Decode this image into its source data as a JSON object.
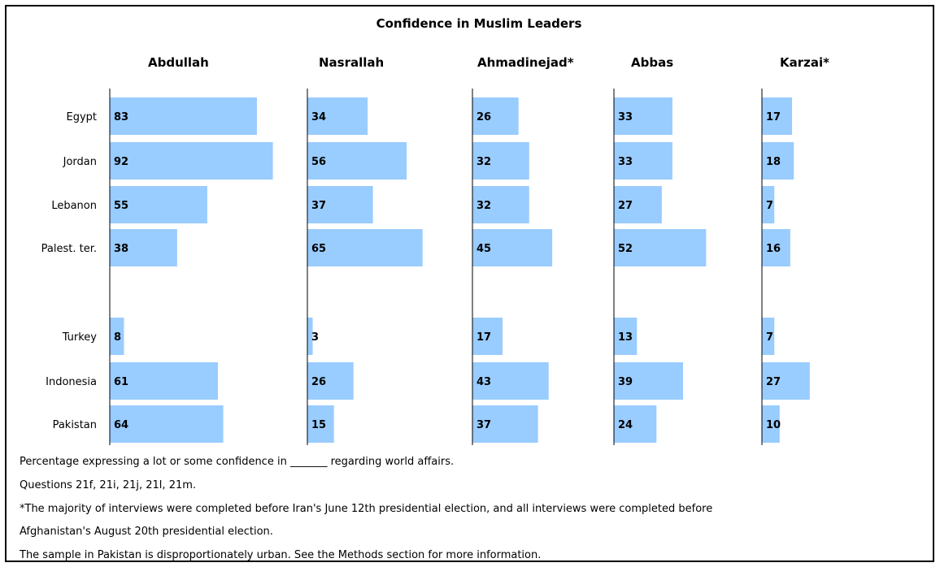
{
  "chart_data": {
    "type": "bar",
    "orientation": "horizontal",
    "title": "Confidence in Muslim Leaders",
    "categories": [
      "Egypt",
      "Jordan",
      "Lebanon",
      "Palest. ter.",
      "Turkey",
      "Indonesia",
      "Pakistan"
    ],
    "category_labels": [
      "Egypt",
      "Jordan",
      "Lebanon",
      "Palest. ter.",
      "Turkey",
      "Indonesia",
      "Pakistan"
    ],
    "series": [
      {
        "name": "Abdullah",
        "values": [
          83,
          92,
          55,
          38,
          8,
          61,
          64
        ]
      },
      {
        "name": "Nasrallah",
        "values": [
          34,
          56,
          37,
          65,
          3,
          26,
          15
        ]
      },
      {
        "name": "Ahmadinejad*",
        "values": [
          26,
          32,
          32,
          45,
          17,
          43,
          37
        ]
      },
      {
        "name": "Abbas",
        "values": [
          33,
          33,
          27,
          52,
          13,
          39,
          24
        ]
      },
      {
        "name": "Karzai*",
        "values": [
          17,
          18,
          7,
          16,
          7,
          27,
          10
        ]
      }
    ],
    "bar_color": "#99ccff",
    "grid": false
  },
  "notes": [
    "Percentage expressing a lot or some confidence in _______ regarding world affairs.",
    "Questions 21f, 21i, 21j, 21l, 21m.",
    "*The majority of interviews were completed before Iran's June 12th presidential election, and all interviews were completed before",
    "Afghanistan's August 20th presidential election.",
    "The sample in Pakistan is disproportionately urban. See the Methods section for more information."
  ]
}
